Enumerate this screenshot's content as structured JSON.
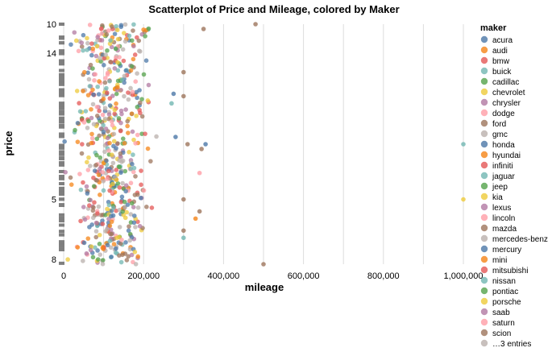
{
  "chart_data": {
    "type": "scatter",
    "title": "Scatterplot of Price and Mileage, colored by Maker",
    "xlabel": "mileage",
    "ylabel": "price",
    "xlim": [
      0,
      1000000
    ],
    "x_ticks": [
      "0",
      "200,000",
      "400,000",
      "600,000",
      "800,000",
      "1,000,000"
    ],
    "x_tick_values": [
      0,
      200000,
      400000,
      600000,
      800000,
      1000000
    ],
    "y_tick_labels": [
      {
        "text": "10",
        "p": 0.0
      },
      {
        "text": "14",
        "p": 0.12
      },
      {
        "text": "5",
        "p": 0.73
      },
      {
        "text": "8",
        "p": 0.98
      }
    ],
    "grid": true,
    "legend": {
      "title": "maker",
      "position": "right",
      "more_label": "…3 entries"
    },
    "makers": [
      {
        "name": "acura",
        "color": "#4c78a8"
      },
      {
        "name": "audi",
        "color": "#f58518"
      },
      {
        "name": "bmw",
        "color": "#e45756"
      },
      {
        "name": "buick",
        "color": "#72b7b2"
      },
      {
        "name": "cadillac",
        "color": "#54a24b"
      },
      {
        "name": "chevrolet",
        "color": "#eeca3b"
      },
      {
        "name": "chrysler",
        "color": "#b279a2"
      },
      {
        "name": "dodge",
        "color": "#ff9da6"
      },
      {
        "name": "ford",
        "color": "#9d755d"
      },
      {
        "name": "gmc",
        "color": "#bab0ac"
      },
      {
        "name": "honda",
        "color": "#4c78a8"
      },
      {
        "name": "hyundai",
        "color": "#f58518"
      },
      {
        "name": "infiniti",
        "color": "#e45756"
      },
      {
        "name": "jaguar",
        "color": "#72b7b2"
      },
      {
        "name": "jeep",
        "color": "#54a24b"
      },
      {
        "name": "kia",
        "color": "#eeca3b"
      },
      {
        "name": "lexus",
        "color": "#b279a2"
      },
      {
        "name": "lincoln",
        "color": "#ff9da6"
      },
      {
        "name": "mazda",
        "color": "#9d755d"
      },
      {
        "name": "mercedes-benz",
        "color": "#bab0ac"
      },
      {
        "name": "mercury",
        "color": "#4c78a8"
      },
      {
        "name": "mini",
        "color": "#f58518"
      },
      {
        "name": "mitsubishi",
        "color": "#e45756"
      },
      {
        "name": "nissan",
        "color": "#72b7b2"
      },
      {
        "name": "pontiac",
        "color": "#54a24b"
      },
      {
        "name": "porsche",
        "color": "#eeca3b"
      },
      {
        "name": "saab",
        "color": "#b279a2"
      },
      {
        "name": "saturn",
        "color": "#ff9da6"
      },
      {
        "name": "scion",
        "color": "#9d755d"
      },
      {
        "name": "more",
        "color": "#bab0ac"
      }
    ],
    "notable_points": [
      {
        "maker": "ford",
        "x": 480000,
        "p": 0.0
      },
      {
        "maker": "ford",
        "x": 350000,
        "p": 0.02
      },
      {
        "maker": "buick",
        "x": 1000000,
        "p": 0.5
      },
      {
        "maker": "chevrolet",
        "x": 1000000,
        "p": 0.73
      },
      {
        "maker": "ford",
        "x": 500000,
        "p": 1.0
      },
      {
        "maker": "ford",
        "x": 340000,
        "p": 0.78
      },
      {
        "maker": "dodge",
        "x": 340000,
        "p": 0.62
      },
      {
        "maker": "hyundai",
        "x": 330000,
        "p": 0.81
      },
      {
        "maker": "honda",
        "x": 355000,
        "p": 0.5
      },
      {
        "maker": "ford",
        "x": 345000,
        "p": 0.52
      },
      {
        "maker": "ford",
        "x": 300000,
        "p": 0.2
      },
      {
        "maker": "ford",
        "x": 300000,
        "p": 0.3
      },
      {
        "maker": "ford",
        "x": 310000,
        "p": 0.5
      },
      {
        "maker": "ford",
        "x": 300000,
        "p": 0.73
      },
      {
        "maker": "ford",
        "x": 300000,
        "p": 0.86
      },
      {
        "maker": "buick",
        "x": 300000,
        "p": 0.89
      },
      {
        "maker": "acura",
        "x": 280000,
        "p": 0.47
      },
      {
        "maker": "acura",
        "x": 275000,
        "p": 0.29
      },
      {
        "maker": "jaguar",
        "x": 270000,
        "p": 0.33
      }
    ]
  }
}
